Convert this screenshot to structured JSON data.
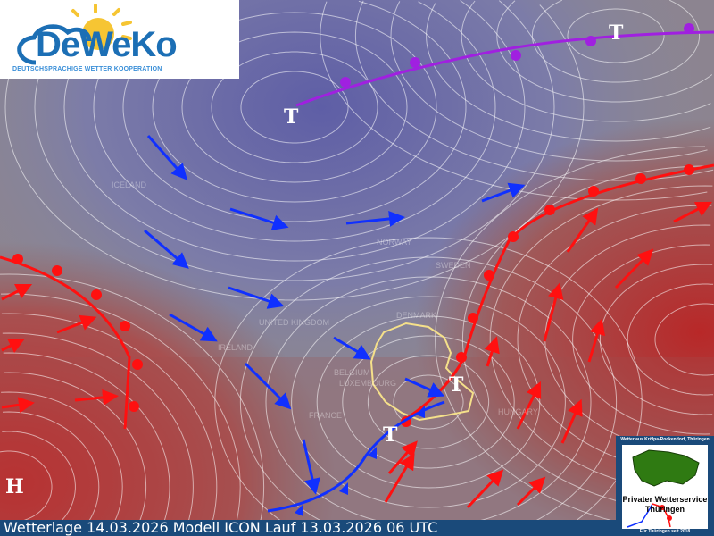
{
  "logo": {
    "name": "DeWeKo",
    "subtitle": "DEUTSCHSPRACHIGE WETTER KOOPERATION"
  },
  "status_bar": {
    "text": "Wetterlage 14.03.2026 Modell ICON Lauf 13.03.2026 06 UTC"
  },
  "partner_logo": {
    "top_text": "Wetter aus Krölpa-Rockendorf, Thüringen",
    "name_line1": "Privater Wetterservice",
    "name_line2": "Thüringen",
    "bottom_text": "Für Thüringen seit 2018"
  },
  "pressure_centers": [
    {
      "label": "T",
      "type": "low"
    },
    {
      "label": "T",
      "type": "low"
    },
    {
      "label": "T",
      "type": "low"
    },
    {
      "label": "T",
      "type": "low"
    },
    {
      "label": "H",
      "type": "high"
    }
  ],
  "country_labels": [
    "ICELAND",
    "NORWAY",
    "SWEDEN",
    "DENMARK",
    "UNITED KINGDOM",
    "IRELAND",
    "BELGIUM",
    "LUXEMBOURG",
    "FRANCE",
    "HUNGARY"
  ],
  "fronts": [
    {
      "type": "occluded",
      "color": "#a020e0"
    },
    {
      "type": "warm",
      "color": "#ff1010"
    },
    {
      "type": "warm",
      "color": "#ff1010"
    },
    {
      "type": "cold",
      "color": "#1030ff"
    }
  ],
  "colors": {
    "cold_air": "#6a6aa8",
    "warm_air": "#b83a3a",
    "warm_arrow": "#ff1010",
    "cold_arrow": "#1030ff",
    "germany_outline": "#f5e08a"
  }
}
